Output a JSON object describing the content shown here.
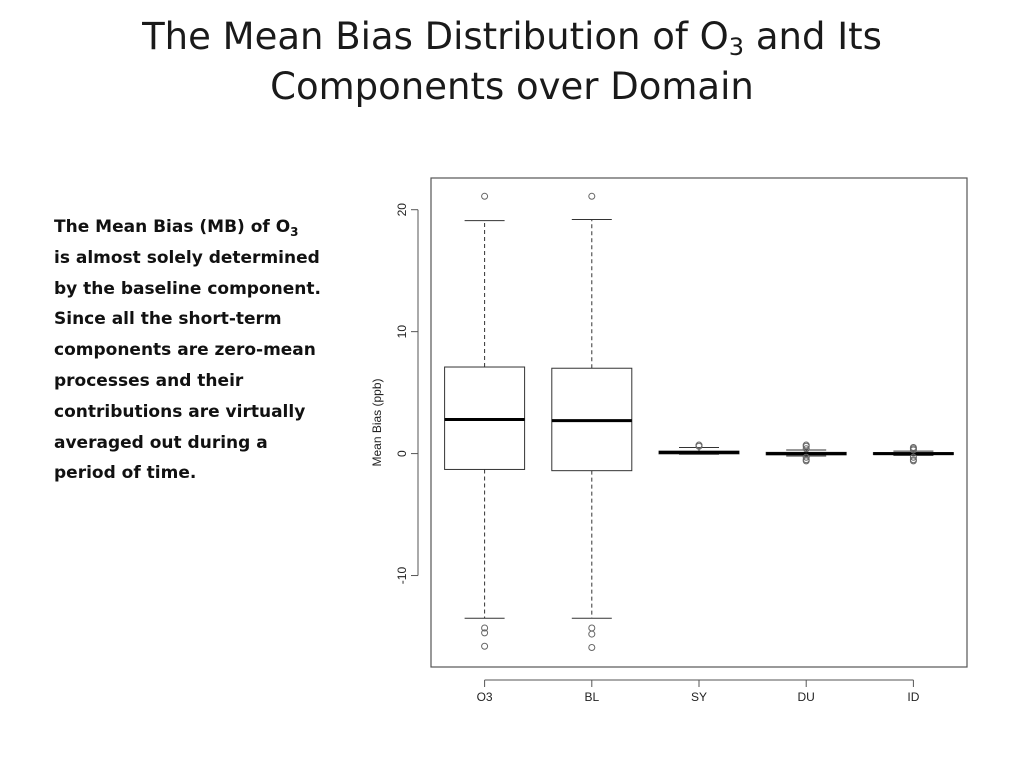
{
  "slide": {
    "title_part1": "The Mean Bias Distribution of O",
    "title_sub": "3",
    "title_part2": " and Its",
    "title_line2": "Components over Domain"
  },
  "body": {
    "line1_main": "The Mean Bias (MB) of O",
    "line1_sub": "3",
    "lines": [
      "is almost solely determined",
      "by the baseline component.",
      "Since all the short-term",
      "components are zero-mean",
      "processes and their",
      "contributions are virtually",
      "averaged out during a",
      "period of time."
    ]
  },
  "chart_data": {
    "type": "boxplot",
    "title": "",
    "xlabel": "",
    "ylabel": "Mean Bias (ppb)",
    "ylim": [
      -17.5,
      22.6
    ],
    "yticks": [
      -10,
      0,
      10,
      20
    ],
    "grid": false,
    "categories": [
      "O3",
      "BL",
      "SY",
      "DU",
      "ID"
    ],
    "boxes": [
      {
        "name": "O3",
        "whisker_low": -13.5,
        "q1": -1.3,
        "median": 2.8,
        "q3": 7.1,
        "whisker_high": 19.1,
        "outliers": [
          21.1,
          -14.3,
          -14.7,
          -15.8
        ]
      },
      {
        "name": "BL",
        "whisker_low": -13.5,
        "q1": -1.4,
        "median": 2.7,
        "q3": 7.0,
        "whisker_high": 19.2,
        "outliers": [
          21.1,
          -14.3,
          -14.8,
          -15.9
        ]
      },
      {
        "name": "SY",
        "whisker_low": -0.05,
        "q1": -0.02,
        "median": 0.1,
        "q3": 0.2,
        "whisker_high": 0.5,
        "outliers": [
          0.6,
          0.7
        ]
      },
      {
        "name": "DU",
        "whisker_low": -0.2,
        "q1": -0.1,
        "median": 0.0,
        "q3": 0.1,
        "whisker_high": 0.3,
        "outliers": [
          0.4,
          0.6,
          0.7,
          -0.3,
          -0.5,
          -0.6
        ]
      },
      {
        "name": "ID",
        "whisker_low": -0.15,
        "q1": -0.08,
        "median": 0.0,
        "q3": 0.08,
        "whisker_high": 0.2,
        "outliers": [
          0.3,
          0.4,
          0.5,
          -0.3,
          -0.5,
          -0.6
        ]
      }
    ]
  }
}
